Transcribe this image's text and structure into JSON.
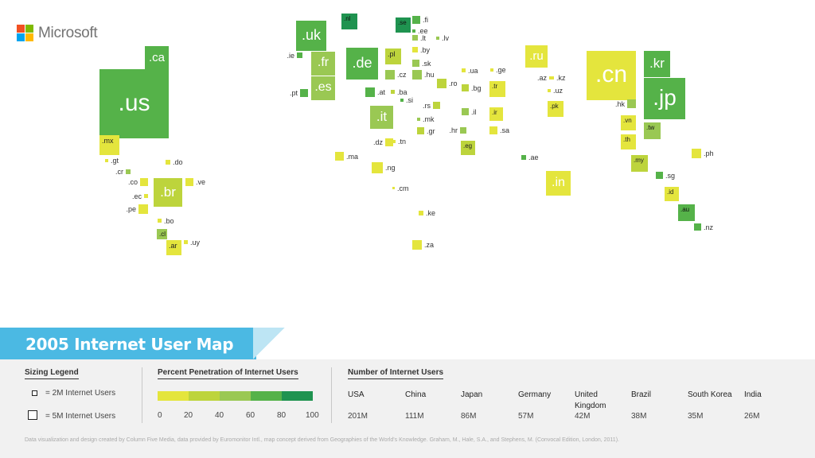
{
  "brand": {
    "name": "Microsoft",
    "icon": "windows-logo-icon",
    "colors": [
      "#f25022",
      "#7fba00",
      "#00a4ef",
      "#ffb900"
    ]
  },
  "title": "2005 Internet User Map",
  "palette": [
    "#e4e53d",
    "#bdd43c",
    "#9ac853",
    "#55b249",
    "#1f9350"
  ],
  "countries": [
    {
      "code": ".us",
      "c": 3
    },
    {
      "code": ".ca",
      "c": 3
    },
    {
      "code": ".mx",
      "c": 0
    },
    {
      "code": ".gt",
      "c": 0
    },
    {
      "code": ".cr",
      "c": 2
    },
    {
      "code": ".do",
      "c": 0
    },
    {
      "code": ".co",
      "c": 0
    },
    {
      "code": ".ec",
      "c": 0
    },
    {
      "code": ".pe",
      "c": 0
    },
    {
      "code": ".ve",
      "c": 0
    },
    {
      "code": ".br",
      "c": 1
    },
    {
      "code": ".bo",
      "c": 0
    },
    {
      "code": ".cl",
      "c": 2
    },
    {
      "code": ".ar",
      "c": 0
    },
    {
      "code": ".uy",
      "c": 0
    },
    {
      "code": ".uk",
      "c": 3
    },
    {
      "code": ".ie",
      "c": 3
    },
    {
      "code": ".fr",
      "c": 2
    },
    {
      "code": ".es",
      "c": 2
    },
    {
      "code": ".pt",
      "c": 3
    },
    {
      "code": ".de",
      "c": 3
    },
    {
      "code": ".nl",
      "c": 4
    },
    {
      "code": ".pl",
      "c": 1
    },
    {
      "code": ".se",
      "c": 4
    },
    {
      "code": ".fi",
      "c": 3
    },
    {
      "code": ".ee",
      "c": 3
    },
    {
      "code": ".lt",
      "c": 2
    },
    {
      "code": ".lv",
      "c": 2
    },
    {
      "code": ".by",
      "c": 0
    },
    {
      "code": ".sk",
      "c": 2
    },
    {
      "code": ".cz",
      "c": 2
    },
    {
      "code": ".hu",
      "c": 2
    },
    {
      "code": ".at",
      "c": 3
    },
    {
      "code": ".ba",
      "c": 1
    },
    {
      "code": ".si",
      "c": 3
    },
    {
      "code": ".ro",
      "c": 1
    },
    {
      "code": ".bg",
      "c": 1
    },
    {
      "code": ".ua",
      "c": 0
    },
    {
      "code": ".ge",
      "c": 0
    },
    {
      "code": ".rs",
      "c": 1
    },
    {
      "code": ".it",
      "c": 2
    },
    {
      "code": ".mk",
      "c": 2
    },
    {
      "code": ".gr",
      "c": 1
    },
    {
      "code": ".hr",
      "c": 2
    },
    {
      "code": ".il",
      "c": 2
    },
    {
      "code": ".tr",
      "c": 0
    },
    {
      "code": ".ir",
      "c": 0
    },
    {
      "code": ".sa",
      "c": 0
    },
    {
      "code": ".eg",
      "c": 1
    },
    {
      "code": ".dz",
      "c": 0
    },
    {
      "code": ".tn",
      "c": 0
    },
    {
      "code": ".ma",
      "c": 0
    },
    {
      "code": ".ng",
      "c": 0
    },
    {
      "code": ".cm",
      "c": 0
    },
    {
      "code": ".ke",
      "c": 0
    },
    {
      "code": ".za",
      "c": 0
    },
    {
      "code": ".ae",
      "c": 3
    },
    {
      "code": ".ru",
      "c": 0
    },
    {
      "code": ".az",
      "c": 0
    },
    {
      "code": ".kz",
      "c": 0
    },
    {
      "code": ".uz",
      "c": 0
    },
    {
      "code": ".pk",
      "c": 0
    },
    {
      "code": ".in",
      "c": 0
    },
    {
      "code": ".cn",
      "c": 0
    },
    {
      "code": ".kr",
      "c": 3
    },
    {
      "code": ".jp",
      "c": 3
    },
    {
      "code": ".hk",
      "c": 2
    },
    {
      "code": ".tw",
      "c": 2
    },
    {
      "code": ".vn",
      "c": 0
    },
    {
      "code": ".th",
      "c": 0
    },
    {
      "code": ".my",
      "c": 1
    },
    {
      "code": ".ph",
      "c": 0
    },
    {
      "code": ".sg",
      "c": 3
    },
    {
      "code": ".id",
      "c": 0
    },
    {
      "code": ".au",
      "c": 3
    },
    {
      "code": ".nz",
      "c": 3
    }
  ],
  "legend": {
    "sizing": {
      "title": "Sizing Legend",
      "small": "= 2M Internet Users",
      "large": "= 5M Internet Users"
    },
    "penetration": {
      "title": "Percent Penetration of Internet Users",
      "ticks": [
        "0",
        "20",
        "40",
        "60",
        "80",
        "100"
      ]
    },
    "users": {
      "title": "Number of Internet Users",
      "items": [
        {
          "country": "USA",
          "value": "201M"
        },
        {
          "country": "China",
          "value": "111M"
        },
        {
          "country": "Japan",
          "value": "86M"
        },
        {
          "country": "Germany",
          "value": "57M"
        },
        {
          "country": "United Kingdom",
          "value": "42M"
        },
        {
          "country": "Brazil",
          "value": "38M"
        },
        {
          "country": "South Korea",
          "value": "35M"
        },
        {
          "country": "India",
          "value": "26M"
        }
      ]
    }
  },
  "credit": "Data visualization and design created by Column Five Media, data provided by Euromonitor Intl., map concept derived from Geographies of the World's Knowledge. Graham, M., Hale, S.A., and Stephens, M. (Convocal Edition, London, 2011)."
}
